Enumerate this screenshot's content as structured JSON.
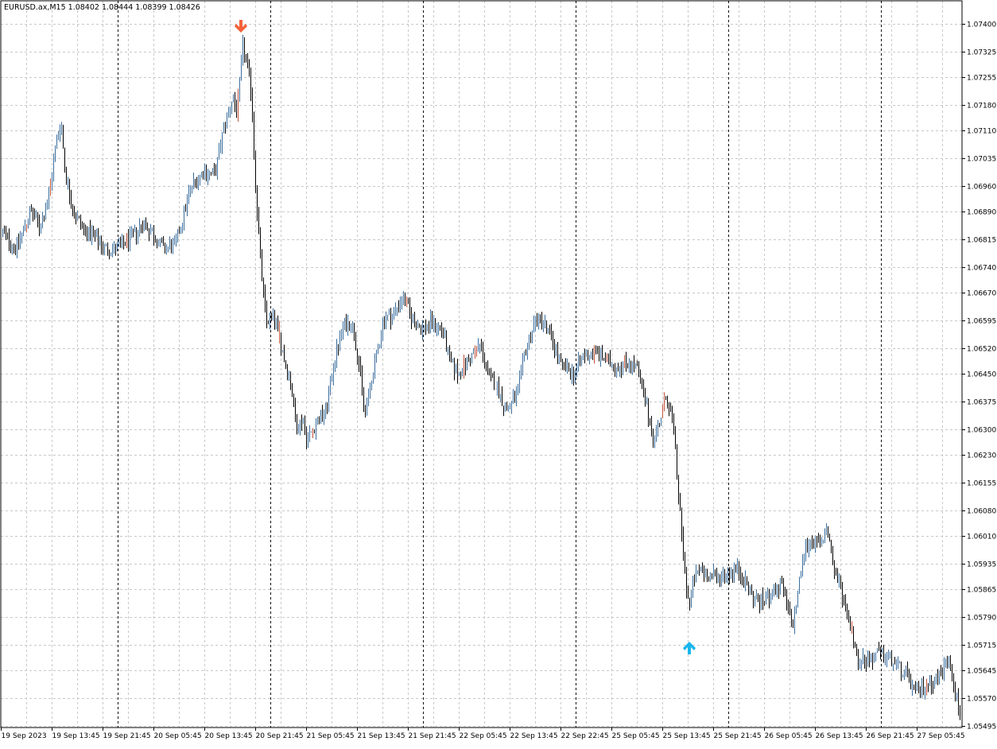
{
  "chart_data": {
    "type": "bar",
    "style": "ohlc",
    "symbol_info": "EURUSD.ax,M15  1.08402 1.08444 1.08399 1.08426",
    "ylim": [
      1.0549,
      1.0744
    ],
    "y_ticks": [
      "1.07400",
      "1.07325",
      "1.07255",
      "1.07180",
      "1.07110",
      "1.07035",
      "1.06960",
      "1.06890",
      "1.06815",
      "1.06740",
      "1.06670",
      "1.06595",
      "1.06520",
      "1.06450",
      "1.06375",
      "1.06300",
      "1.06230",
      "1.06155",
      "1.06080",
      "1.06010",
      "1.05935",
      "1.05865",
      "1.05790",
      "1.05715",
      "1.05645",
      "1.05570",
      "1.05495"
    ],
    "x_ticks": [
      "19 Sep 2023",
      "19 Sep 13:45",
      "19 Sep 21:45",
      "20 Sep 05:45",
      "20 Sep 13:45",
      "20 Sep 21:45",
      "21 Sep 05:45",
      "21 Sep 13:45",
      "21 Sep 21:45",
      "22 Sep 05:45",
      "22 Sep 13:45",
      "22 Sep 22:45",
      "25 Sep 05:45",
      "25 Sep 13:45",
      "25 Sep 21:45",
      "26 Sep 05:45",
      "26 Sep 13:45",
      "26 Sep 21:45",
      "27 Sep 05:45"
    ],
    "grid": true,
    "close_path": [
      [
        0,
        1.0684
      ],
      [
        20,
        1.0679
      ],
      [
        38,
        1.0689
      ],
      [
        50,
        1.0685
      ],
      [
        62,
        1.0694
      ],
      [
        68,
        1.0705
      ],
      [
        76,
        1.0714
      ],
      [
        82,
        1.0699
      ],
      [
        92,
        1.0689
      ],
      [
        106,
        1.0684
      ],
      [
        118,
        1.0682
      ],
      [
        132,
        1.0679
      ],
      [
        148,
        1.0679
      ],
      [
        165,
        1.0682
      ],
      [
        180,
        1.0686
      ],
      [
        192,
        1.0683
      ],
      [
        205,
        1.0679
      ],
      [
        220,
        1.068
      ],
      [
        230,
        1.0688
      ],
      [
        240,
        1.0696
      ],
      [
        255,
        1.07
      ],
      [
        270,
        1.0699
      ],
      [
        280,
        1.0711
      ],
      [
        292,
        1.072
      ],
      [
        298,
        1.0716
      ],
      [
        305,
        1.0734
      ],
      [
        310,
        1.0729
      ],
      [
        316,
        1.0721
      ],
      [
        320,
        1.07
      ],
      [
        326,
        1.0679
      ],
      [
        334,
        1.0659
      ],
      [
        344,
        1.0661
      ],
      [
        356,
        1.065
      ],
      [
        366,
        1.0642
      ],
      [
        372,
        1.063
      ],
      [
        380,
        1.0633
      ],
      [
        386,
        1.0627
      ],
      [
        398,
        1.0632
      ],
      [
        410,
        1.0635
      ],
      [
        420,
        1.0649
      ],
      [
        432,
        1.0658
      ],
      [
        442,
        1.0659
      ],
      [
        450,
        1.065
      ],
      [
        458,
        1.0634
      ],
      [
        466,
        1.0642
      ],
      [
        474,
        1.0651
      ],
      [
        482,
        1.066
      ],
      [
        494,
        1.0661
      ],
      [
        506,
        1.0666
      ],
      [
        518,
        1.066
      ],
      [
        530,
        1.0657
      ],
      [
        542,
        1.0659
      ],
      [
        556,
        1.0657
      ],
      [
        566,
        1.0648
      ],
      [
        576,
        1.0645
      ],
      [
        590,
        1.0649
      ],
      [
        604,
        1.0653
      ],
      [
        614,
        1.0644
      ],
      [
        624,
        1.0642
      ],
      [
        636,
        1.0635
      ],
      [
        650,
        1.0639
      ],
      [
        660,
        1.0651
      ],
      [
        672,
        1.0659
      ],
      [
        682,
        1.066
      ],
      [
        694,
        1.0654
      ],
      [
        706,
        1.0647
      ],
      [
        720,
        1.0645
      ],
      [
        734,
        1.065
      ],
      [
        748,
        1.0651
      ],
      [
        760,
        1.0649
      ],
      [
        774,
        1.0647
      ],
      [
        790,
        1.0648
      ],
      [
        800,
        1.0647
      ],
      [
        808,
        1.064
      ],
      [
        816,
        1.0633
      ],
      [
        822,
        1.0627
      ],
      [
        830,
        1.0633
      ],
      [
        838,
        1.0639
      ],
      [
        846,
        1.0632
      ],
      [
        852,
        1.0615
      ],
      [
        858,
        1.0598
      ],
      [
        863,
        1.0587
      ],
      [
        867,
        1.0582
      ],
      [
        872,
        1.0589
      ],
      [
        880,
        1.0592
      ],
      [
        892,
        1.059
      ],
      [
        904,
        1.059
      ],
      [
        916,
        1.0591
      ],
      [
        928,
        1.0592
      ],
      [
        938,
        1.0588
      ],
      [
        948,
        1.0584
      ],
      [
        960,
        1.0583
      ],
      [
        972,
        1.0586
      ],
      [
        984,
        1.0587
      ],
      [
        996,
        1.0576
      ],
      [
        1004,
        1.0587
      ],
      [
        1012,
        1.0598
      ],
      [
        1022,
        1.06
      ],
      [
        1032,
        1.0598
      ],
      [
        1040,
        1.0604
      ],
      [
        1048,
        1.0592
      ],
      [
        1058,
        1.0586
      ],
      [
        1068,
        1.0578
      ],
      [
        1078,
        1.0568
      ],
      [
        1090,
        1.0567
      ],
      [
        1102,
        1.0569
      ],
      [
        1116,
        1.0568
      ],
      [
        1128,
        1.0566
      ],
      [
        1140,
        1.0563
      ],
      [
        1152,
        1.0558
      ],
      [
        1164,
        1.0561
      ],
      [
        1176,
        1.0562
      ],
      [
        1186,
        1.0565
      ],
      [
        1194,
        1.0568
      ],
      [
        1200,
        1.056
      ],
      [
        1206,
        1.0553
      ]
    ],
    "markers": [
      {
        "type": "sell-arrow",
        "bar_x": 303,
        "price": 1.07385,
        "color": "#f4623a"
      },
      {
        "type": "buy-arrow",
        "bar_x": 867,
        "price": 1.05715,
        "color": "#18b6ec"
      }
    ],
    "colors": {
      "bull": "#3a6e9e",
      "bear": "#000000",
      "highlight": "#c0503a",
      "grid": "#c8c8c8",
      "separator": "#000000"
    }
  }
}
